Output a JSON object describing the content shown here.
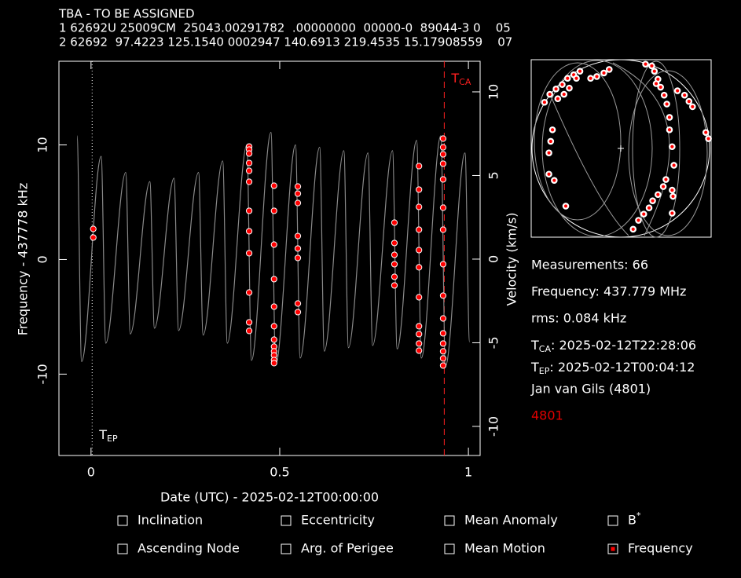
{
  "header": {
    "lines": [
      "TBA - TO BE ASSIGNED",
      "1 62692U 25009CM  25043.00291782  .00000000  00000-0  89044-3 0    05",
      "2 62692  97.4223 125.1540 0002947 140.6913 219.4535 15.17908559    07"
    ]
  },
  "chart_data": [
    {
      "type": "scatter",
      "xlabel": "Date (UTC) - 2025-02-12T00:00:00",
      "ylabel": "Frequency - 437778 kHz",
      "y2label": "Velocity (km/s)",
      "xlim": [
        -0.085,
        1.031
      ],
      "ylim": [
        -17.1,
        17.3
      ],
      "y2lim": [
        -11.74,
        11.83
      ],
      "xticks": [
        0,
        0.5,
        1
      ],
      "yticks": [
        -10,
        0,
        10
      ],
      "y2ticks": [
        -10,
        -5,
        0,
        5,
        10
      ],
      "markers": [
        {
          "label": "T",
          "sub": "CA",
          "x": 0.936,
          "color": "#ff2020"
        },
        {
          "label": "T",
          "sub": "EP",
          "x": 0.003,
          "color": "#ffffff"
        }
      ],
      "series": [
        {
          "type": "line",
          "color": "#8a8a8a",
          "x": [
            -0.037,
            -0.025,
            0.027,
            0.039,
            0.092,
            0.104,
            0.156,
            0.168,
            0.22,
            0.232,
            0.285,
            0.297,
            0.349,
            0.361,
            0.413,
            0.425,
            0.477,
            0.489,
            0.542,
            0.554,
            0.606,
            0.618,
            0.67,
            0.682,
            0.734,
            0.746,
            0.799,
            0.811,
            0.863,
            0.875,
            0.927,
            0.939,
            0.991,
            1.003
          ],
          "values": [
            10.8,
            -8.9,
            9.0,
            -7.3,
            7.6,
            -6.5,
            6.8,
            -6.0,
            7.1,
            -6.2,
            7.6,
            -6.6,
            8.6,
            -7.3,
            10.0,
            -8.8,
            11.1,
            -9.2,
            10.0,
            -8.6,
            9.8,
            -8.0,
            9.5,
            -7.7,
            9.3,
            -7.5,
            9.5,
            -7.8,
            10.4,
            -8.6,
            10.8,
            -9.3,
            9.3,
            -7.2
          ]
        },
        {
          "type": "scatter",
          "color": "#ff0000",
          "x": [
            0.006,
            0.006,
            0.419,
            0.419,
            0.419,
            0.419,
            0.419,
            0.419,
            0.419,
            0.419,
            0.419,
            0.419,
            0.419,
            0.419,
            0.485,
            0.485,
            0.485,
            0.485,
            0.485,
            0.485,
            0.485,
            0.485,
            0.485,
            0.485,
            0.485,
            0.485,
            0.548,
            0.548,
            0.548,
            0.548,
            0.548,
            0.548,
            0.548,
            0.548,
            0.804,
            0.804,
            0.804,
            0.804,
            0.804,
            0.804,
            0.869,
            0.869,
            0.869,
            0.869,
            0.869,
            0.869,
            0.869,
            0.869,
            0.869,
            0.869,
            0.869,
            0.933,
            0.933,
            0.933,
            0.933,
            0.933,
            0.933,
            0.933,
            0.933,
            0.933,
            0.933,
            0.933,
            0.933,
            0.933,
            0.933,
            0.933
          ],
          "values": [
            2.67,
            1.92,
            9.86,
            9.59,
            9.25,
            8.42,
            7.74,
            6.78,
            4.25,
            2.47,
            0.55,
            -2.88,
            -5.48,
            -6.23,
            6.44,
            4.25,
            1.3,
            -1.71,
            -4.11,
            -5.82,
            -6.99,
            -7.6,
            -8.01,
            -8.36,
            -8.77,
            -9.04,
            6.37,
            5.75,
            4.93,
            2.05,
            0.96,
            0.14,
            -3.84,
            -4.59,
            3.22,
            1.44,
            0.41,
            -0.41,
            -1.51,
            -2.26,
            8.15,
            6.1,
            4.59,
            2.6,
            0.82,
            -0.68,
            -3.29,
            -5.82,
            -6.51,
            -7.33,
            -7.95,
            10.55,
            9.79,
            9.18,
            8.36,
            6.99,
            4.52,
            2.6,
            -0.41,
            -3.15,
            -5.14,
            -6.44,
            -7.33,
            -8.01,
            -8.63,
            -9.25
          ]
        }
      ]
    },
    {
      "type": "scatter",
      "xlim": [
        -1.01,
        1.02
      ],
      "ylim": [
        -1.0,
        1.0
      ],
      "series": [
        {
          "type": "scatter",
          "color": "#ff0000",
          "x": [
            -0.86,
            -0.8,
            -0.73,
            -0.66,
            -0.6,
            -0.53,
            -0.46,
            -0.71,
            -0.64,
            -0.58,
            -0.5,
            -0.34,
            -0.27,
            -0.19,
            -0.13,
            -0.77,
            -0.79,
            -0.81,
            -0.81,
            -0.75,
            -0.62,
            0.28,
            0.35,
            0.38,
            0.42,
            0.45,
            0.49,
            0.52,
            0.55,
            0.55,
            0.58,
            0.6,
            0.59,
            0.58,
            0.64,
            0.72,
            0.77,
            0.81,
            0.96,
            0.99,
            0.51,
            0.48,
            0.42,
            0.36,
            0.32,
            0.26,
            0.2,
            0.14,
            0.58,
            0.4
          ],
          "values": [
            0.52,
            0.61,
            0.67,
            0.72,
            0.79,
            0.83,
            0.87,
            0.56,
            0.61,
            0.68,
            0.79,
            0.79,
            0.81,
            0.85,
            0.89,
            0.21,
            0.08,
            -0.05,
            -0.29,
            -0.36,
            -0.65,
            0.95,
            0.93,
            0.87,
            0.78,
            0.69,
            0.6,
            0.5,
            0.35,
            0.21,
            0.02,
            -0.19,
            -0.54,
            -0.73,
            0.65,
            0.6,
            0.53,
            0.47,
            0.18,
            0.11,
            -0.35,
            -0.43,
            -0.52,
            -0.59,
            -0.67,
            -0.74,
            -0.81,
            -0.91,
            -0.47,
            0.73
          ]
        }
      ]
    }
  ],
  "panel": {
    "measurements": "Measurements: 66",
    "frequency": "Frequency: 437.779 MHz",
    "rms": "rms: 0.084 kHz",
    "tca": {
      "symbol": "T",
      "sub": "CA",
      "text": ": 2025-02-12T22:28:06"
    },
    "tep": {
      "symbol": "T",
      "sub": "EP",
      "text": ": 2025-02-12T00:04:12"
    },
    "observer": "Jan van Gils (4801)",
    "site": "4801"
  },
  "options": [
    {
      "label": "Inclination",
      "checked": false
    },
    {
      "label": "Eccentricity",
      "checked": false
    },
    {
      "label": "Mean Anomaly",
      "checked": false
    },
    {
      "label": "B",
      "sup": "*",
      "checked": false
    },
    {
      "label": "Ascending Node",
      "checked": false
    },
    {
      "label": "Arg. of Perigee",
      "checked": false
    },
    {
      "label": "Mean Motion",
      "checked": false
    },
    {
      "label": "Frequency",
      "checked": true
    }
  ]
}
